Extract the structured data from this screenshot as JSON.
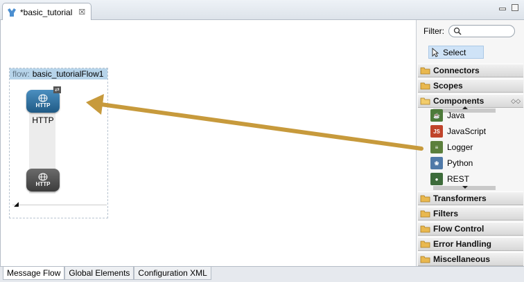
{
  "editor": {
    "tab_title": "*basic_tutorial",
    "close_glyph": "☒"
  },
  "flow": {
    "keyword": "flow:",
    "name": "basic_tutorialFlow1",
    "inbound": {
      "badge": "HTTP",
      "label": "HTTP"
    },
    "outbound": {
      "badge": "HTTP"
    }
  },
  "palette": {
    "filter_label": "Filter:",
    "filter_placeholder": "",
    "select_label": "Select",
    "drawers": {
      "connectors": "Connectors",
      "scopes": "Scopes",
      "components": "Components",
      "transformers": "Transformers",
      "filters": "Filters",
      "flow_control": "Flow Control",
      "error_handling": "Error Handling",
      "miscellaneous": "Miscellaneous"
    },
    "components": [
      {
        "label": "Java",
        "icon": "java-icon",
        "badge": "☕"
      },
      {
        "label": "JavaScript",
        "icon": "javascript-icon",
        "badge": "JS"
      },
      {
        "label": "Logger",
        "icon": "logger-icon",
        "badge": "≡"
      },
      {
        "label": "Python",
        "icon": "python-icon",
        "badge": "❀"
      },
      {
        "label": "REST",
        "icon": "rest-icon",
        "badge": "●"
      }
    ]
  },
  "bottom_tabs": {
    "message_flow": "Message Flow",
    "global_elements": "Global Elements",
    "configuration_xml": "Configuration XML"
  },
  "colors": {
    "arrow": "#c79a3c",
    "flow_header": "#b7d4ea",
    "http_inbound": "#2f6f9f",
    "http_outbound": "#4a4a4a"
  }
}
